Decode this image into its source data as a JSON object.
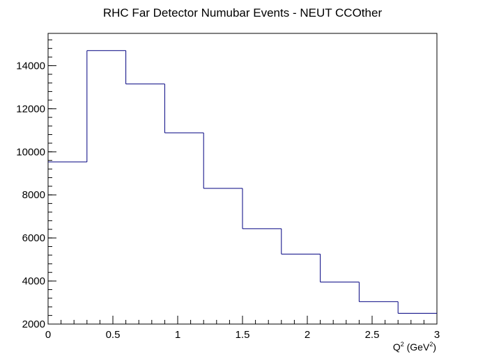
{
  "chart_data": {
    "type": "histogram",
    "title": "RHC Far Detector Numubar Events - NEUT CCOther",
    "xlabel": {
      "main": "Q",
      "sup1": "2",
      "unit_open": " (GeV",
      "sup2": "2",
      "unit_close": ")"
    },
    "ylabel": "",
    "xlim": [
      0,
      3
    ],
    "ylim": [
      2000,
      15500
    ],
    "bin_edges": [
      0,
      0.3,
      0.6,
      0.9,
      1.2,
      1.5,
      1.8,
      2.1,
      2.4,
      2.7,
      3.0
    ],
    "values": [
      9530,
      14700,
      13150,
      10880,
      8300,
      6430,
      5250,
      3950,
      3040,
      2500
    ],
    "x_ticks": [
      {
        "value": 0,
        "label": "0"
      },
      {
        "value": 0.5,
        "label": "0.5"
      },
      {
        "value": 1,
        "label": "1"
      },
      {
        "value": 1.5,
        "label": "1.5"
      },
      {
        "value": 2,
        "label": "2"
      },
      {
        "value": 2.5,
        "label": "2.5"
      },
      {
        "value": 3,
        "label": "3"
      }
    ],
    "y_ticks": [
      {
        "value": 2000,
        "label": "2000"
      },
      {
        "value": 4000,
        "label": "4000"
      },
      {
        "value": 6000,
        "label": "6000"
      },
      {
        "value": 8000,
        "label": "8000"
      },
      {
        "value": 10000,
        "label": "10000"
      },
      {
        "value": 12000,
        "label": "12000"
      },
      {
        "value": 14000,
        "label": "14000"
      }
    ],
    "x_minor_step": 0.1,
    "y_minor_step": 400,
    "grid": false,
    "legend": "none",
    "colors": {
      "line": "#000080",
      "axis": "#000000",
      "background": "#ffffff"
    }
  }
}
